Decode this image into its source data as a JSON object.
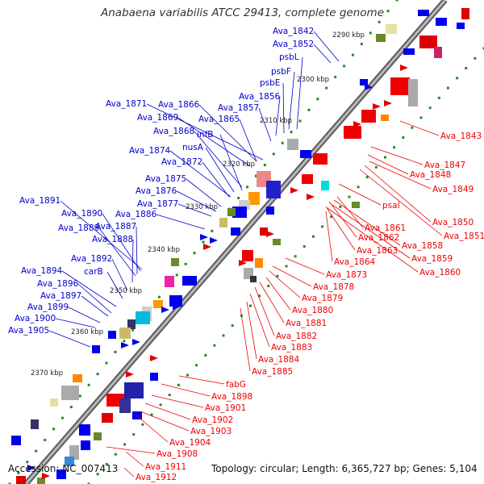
{
  "title": "Anabaena variabilis ATCC 29413, complete genome",
  "footer": {
    "accession": "Accession: NC_007413",
    "topology": "Topology: circular; Length: 6,365,727 bp; Genes: 5,104"
  },
  "colors": {
    "plus_label": "#0000cc",
    "minus_label": "#ee0000",
    "backbone": "#8a8a8a",
    "tick_dots": "#228b22"
  },
  "kbp_ticks": [
    "2290 kbp",
    "2300 kbp",
    "2310 kbp",
    "2320 kbp",
    "2330 kbp",
    "2340 kbp",
    "2350 kbp",
    "2360 kbp",
    "2370 kbp"
  ],
  "plus_strand_labels": [
    "Ava_1842",
    "Ava_1852",
    "psbL",
    "psbF",
    "psbE",
    "Ava_1856",
    "Ava_1857",
    "Ava_1866",
    "Ava_1871",
    "Ava_1869",
    "Ava_1865",
    "Ava_1868",
    "infB",
    "nusA",
    "Ava_1874",
    "Ava_1872",
    "Ava_1875",
    "Ava_1876",
    "Ava_1877",
    "Ava_1886",
    "Ava_1891",
    "Ava_1890",
    "Ava_1889",
    "Ava_1887",
    "Ava_1888",
    "Ava_1892",
    "carB",
    "Ava_1894",
    "Ava_1896",
    "Ava_1897",
    "Ava_1899",
    "Ava_1900",
    "Ava_1905"
  ],
  "minus_strand_labels": [
    "Ava_1843",
    "Ava_1847",
    "Ava_1848",
    "psaI",
    "Ava_1849",
    "Ava_1850",
    "Ava_1851",
    "Ava_1861",
    "Ava_1858",
    "Ava_1862",
    "Ava_1859",
    "Ava_1863",
    "Ava_1860",
    "Ava_1864",
    "Ava_1873",
    "Ava_1878",
    "Ava_1879",
    "Ava_1880",
    "Ava_1881",
    "Ava_1882",
    "Ava_1883",
    "Ava_1884",
    "Ava_1885",
    "fabG",
    "Ava_1898",
    "Ava_1901",
    "Ava_1902",
    "Ava_1903",
    "Ava_1904",
    "Ava_1908",
    "Ava_1911",
    "Ava_1912"
  ]
}
